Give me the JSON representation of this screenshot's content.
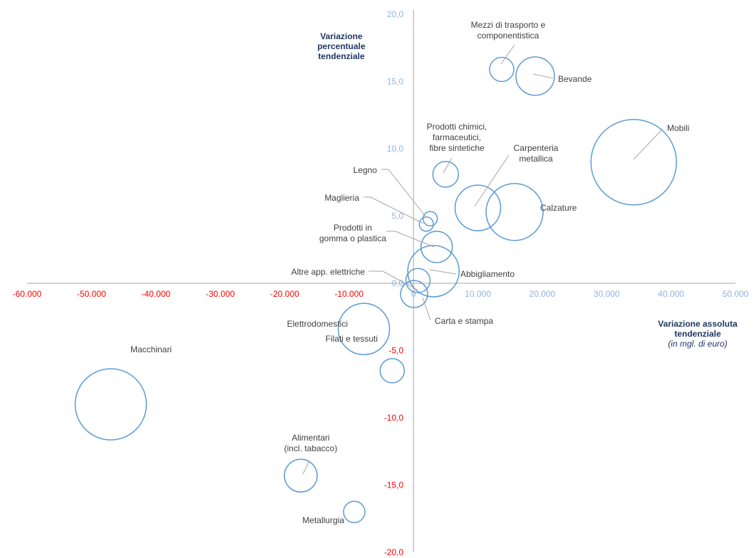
{
  "chart_data": {
    "type": "scatter",
    "subtype": "bubble",
    "xlabel": "Variazione assoluta tendenziale",
    "xlabel_unit": "(in mgl. di euro)",
    "ylabel": "Variazione percentuale tendenziale",
    "xlim": [
      -60000,
      50000
    ],
    "ylim": [
      -20,
      20
    ],
    "grid": false,
    "x_ticks": [
      "-60.000",
      "-50.000",
      "-40.000",
      "-30.000",
      "-20.000",
      "-10.000",
      "0",
      "10.000",
      "20.000",
      "30.000",
      "40.000",
      "50.000"
    ],
    "y_ticks": [
      "20,0",
      "15,0",
      "10,0",
      "5,0",
      "0,0",
      "-5,0",
      "-10,0",
      "-15,0",
      "-20,0"
    ],
    "colors": {
      "positive_tick": "#8db4e2",
      "negative_tick": "#ff0000",
      "bubble": "#5b9bd5",
      "axis": "#a6a6a6",
      "title": "#1f3864"
    },
    "points": [
      {
        "label": "Mezzi di trasporto e\ncomponentistica",
        "x": 13700,
        "y": 15.9,
        "size": 17
      },
      {
        "label": "Bevande",
        "x": 18900,
        "y": 15.4,
        "size": 27
      },
      {
        "label": "Mobili",
        "x": 34200,
        "y": 9.0,
        "size": 60
      },
      {
        "label": "Prodotti chimici,\nfarmaceutici,\nfibre sintetiche",
        "x": 5000,
        "y": 8.1,
        "size": 18
      },
      {
        "label": "Carpenteria\nmetallica",
        "x": 10000,
        "y": 5.6,
        "size": 32
      },
      {
        "label": "Calzature",
        "x": 15700,
        "y": 5.3,
        "size": 40
      },
      {
        "label": "Legno",
        "x": 2600,
        "y": 4.8,
        "size": 10
      },
      {
        "label": "Maglieria",
        "x": 2000,
        "y": 4.4,
        "size": 10
      },
      {
        "label": "Prodotti in\ngomma o plastica",
        "x": 3600,
        "y": 2.7,
        "size": 22
      },
      {
        "label": "Abbigliamento",
        "x": 3100,
        "y": 0.9,
        "size": 36
      },
      {
        "label": "Altre app. elettriche",
        "x": 700,
        "y": 0.2,
        "size": 17
      },
      {
        "label": "Carta e stampa",
        "x": 100,
        "y": -0.8,
        "size": 19
      },
      {
        "label": "Elettrodomestici",
        "x": -7700,
        "y": -3.4,
        "size": 36
      },
      {
        "label": "Filati e tessuti",
        "x": -3300,
        "y": -6.5,
        "size": 17
      },
      {
        "label": "Macchinari",
        "x": -47000,
        "y": -9.0,
        "size": 50
      },
      {
        "label": "Alimentari\n(incl. tabacco)",
        "x": -17500,
        "y": -14.3,
        "size": 23
      },
      {
        "label": "Metallurgia",
        "x": -9200,
        "y": -17.0,
        "size": 15
      }
    ]
  }
}
